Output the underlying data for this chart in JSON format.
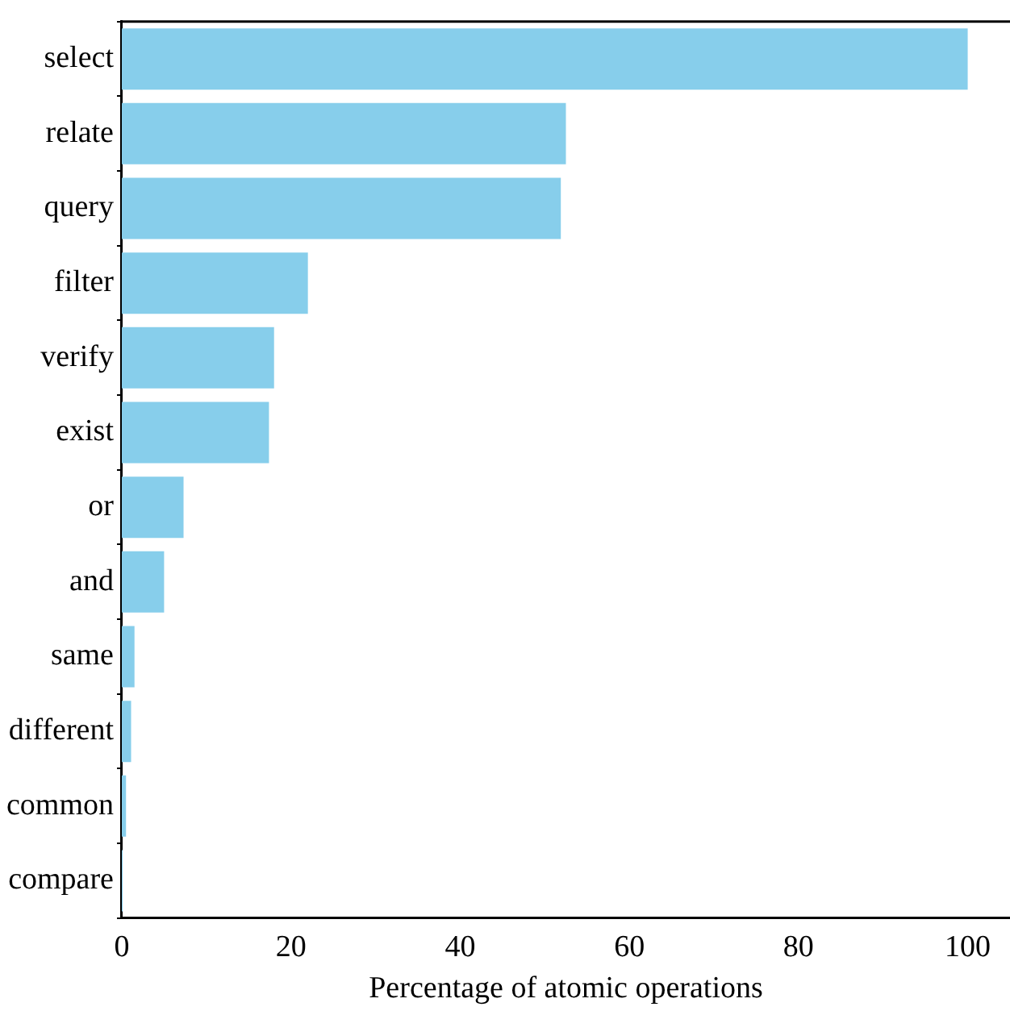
{
  "chart_data": {
    "type": "bar",
    "orientation": "horizontal",
    "xlabel": "Percentage of atomic operations",
    "categories": [
      "select",
      "relate",
      "query",
      "filter",
      "verify",
      "exist",
      "or",
      "and",
      "same",
      "different",
      "common",
      "compare"
    ],
    "values": [
      100,
      52.5,
      51.9,
      22.0,
      18.0,
      17.4,
      7.3,
      5.0,
      1.5,
      1.1,
      0.5,
      0.1
    ],
    "color": "#87ceeb",
    "xlim": [
      0,
      105
    ],
    "xticks": [
      0,
      20,
      40,
      60,
      80,
      100
    ],
    "grid": false,
    "legend": false
  }
}
